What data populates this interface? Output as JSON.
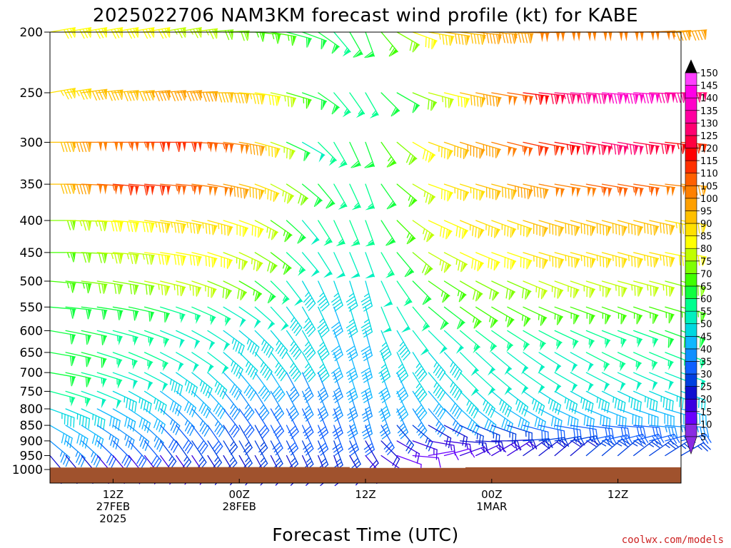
{
  "chart_data": {
    "type": "wind-profile",
    "title": "2025022706 NAM3KM forecast wind profile (kt) for KABE",
    "xlabel": "Forecast Time (UTC)",
    "ylabel": "",
    "y_scale": "log",
    "ylim": [
      1000,
      200
    ],
    "y_ticks": [
      200,
      250,
      300,
      350,
      400,
      450,
      500,
      550,
      600,
      650,
      700,
      750,
      800,
      850,
      900,
      950,
      1000
    ],
    "x_range_hours": [
      0,
      60
    ],
    "x_ticks": [
      {
        "hour": 6,
        "lines": [
          "12Z",
          "27FEB",
          "2025"
        ]
      },
      {
        "hour": 18,
        "lines": [
          "00Z",
          "28FEB"
        ]
      },
      {
        "hour": 30,
        "lines": [
          "12Z"
        ]
      },
      {
        "hour": 42,
        "lines": [
          "00Z",
          "1MAR"
        ]
      },
      {
        "hour": 54,
        "lines": [
          "12Z"
        ]
      }
    ],
    "ground": {
      "color": "#a0522d",
      "surface_pressure": [
        [
          0,
          993
        ],
        [
          4,
          993
        ],
        [
          9.5,
          993
        ],
        [
          9.5,
          991
        ],
        [
          28.5,
          991
        ],
        [
          28.5,
          994
        ],
        [
          39.5,
          994
        ],
        [
          39.5,
          992
        ],
        [
          60,
          992
        ]
      ]
    },
    "colorbar": {
      "levels": [
        5,
        10,
        15,
        20,
        25,
        30,
        35,
        40,
        45,
        50,
        55,
        60,
        65,
        70,
        75,
        80,
        85,
        90,
        95,
        100,
        105,
        110,
        115,
        120,
        125,
        130,
        135,
        140,
        145,
        150
      ],
      "colors": [
        "#8a2be2",
        "#6a00ff",
        "#3a00e0",
        "#1010d0",
        "#0040e0",
        "#1060ff",
        "#1090ff",
        "#10b8ff",
        "#00d8e0",
        "#00f0c0",
        "#00ff90",
        "#10ff40",
        "#40ff00",
        "#80ff00",
        "#c0ff00",
        "#ffff00",
        "#ffe000",
        "#ffc000",
        "#ffa000",
        "#ff8000",
        "#ff6000",
        "#ff3000",
        "#ff0000",
        "#ff0040",
        "#ff0070",
        "#ff00a0",
        "#ff00c8",
        "#ff00e8",
        "#ff40ff"
      ],
      "over_color": "#000000",
      "under_color": "#8a2be2"
    },
    "profile": {
      "levels": [
        200,
        250,
        300,
        350,
        400,
        450,
        500,
        550,
        600,
        650,
        700,
        750,
        800,
        850,
        900,
        950
      ],
      "hour_step": 1.5,
      "anchor_hours": [
        0,
        6,
        12,
        18,
        24,
        27,
        30,
        33,
        36,
        42,
        48,
        54,
        60
      ],
      "speed_kt": {
        "200": [
          80,
          82,
          75,
          65,
          60,
          55,
          60,
          70,
          85,
          95,
          100,
          100,
          95
        ],
        "250": [
          85,
          90,
          95,
          85,
          60,
          55,
          55,
          60,
          75,
          100,
          125,
          135,
          125
        ],
        "300": [
          90,
          105,
          110,
          95,
          50,
          55,
          60,
          70,
          85,
          100,
          115,
          125,
          110
        ],
        "350": [
          90,
          110,
          105,
          90,
          60,
          55,
          55,
          65,
          80,
          90,
          100,
          105,
          95
        ],
        "400": [
          70,
          80,
          85,
          80,
          50,
          55,
          55,
          65,
          80,
          85,
          90,
          90,
          85
        ],
        "450": [
          65,
          75,
          80,
          75,
          50,
          50,
          50,
          60,
          75,
          80,
          85,
          85,
          80
        ],
        "500": [
          65,
          70,
          75,
          65,
          45,
          45,
          45,
          55,
          65,
          70,
          75,
          75,
          70
        ],
        "550": [
          60,
          60,
          55,
          50,
          45,
          40,
          45,
          50,
          60,
          65,
          65,
          65,
          65
        ],
        "600": [
          60,
          55,
          50,
          45,
          45,
          40,
          40,
          45,
          50,
          55,
          55,
          55,
          60
        ],
        "650": [
          60,
          55,
          50,
          45,
          45,
          40,
          40,
          45,
          45,
          50,
          50,
          55,
          55
        ],
        "700": [
          60,
          50,
          45,
          40,
          35,
          35,
          40,
          40,
          45,
          50,
          50,
          50,
          50
        ],
        "750": [
          55,
          45,
          40,
          35,
          35,
          35,
          35,
          40,
          40,
          45,
          45,
          45,
          45
        ],
        "800": [
          45,
          40,
          35,
          30,
          30,
          30,
          35,
          35,
          35,
          40,
          40,
          40,
          40
        ],
        "850": [
          40,
          35,
          30,
          25,
          30,
          30,
          30,
          25,
          20,
          25,
          30,
          30,
          35
        ],
        "900": [
          35,
          30,
          25,
          25,
          25,
          25,
          20,
          15,
          15,
          20,
          25,
          30,
          30
        ],
        "950": [
          20,
          15,
          15,
          20,
          20,
          20,
          15,
          10,
          10,
          15,
          20,
          25,
          25
        ]
      },
      "direction_deg": {
        "200": [
          260,
          260,
          260,
          270,
          290,
          320,
          340,
          300,
          280,
          275,
          270,
          270,
          265
        ],
        "250": [
          260,
          265,
          265,
          275,
          290,
          320,
          330,
          300,
          285,
          280,
          275,
          275,
          270
        ],
        "300": [
          270,
          270,
          270,
          280,
          300,
          330,
          340,
          310,
          290,
          285,
          280,
          280,
          275
        ],
        "350": [
          270,
          275,
          275,
          285,
          310,
          330,
          340,
          310,
          290,
          285,
          280,
          280,
          275
        ],
        "400": [
          270,
          275,
          280,
          290,
          320,
          335,
          340,
          315,
          295,
          290,
          285,
          285,
          280
        ],
        "450": [
          270,
          275,
          280,
          295,
          320,
          335,
          340,
          320,
          300,
          290,
          285,
          285,
          280
        ],
        "500": [
          275,
          280,
          285,
          300,
          330,
          340,
          345,
          325,
          305,
          295,
          290,
          285,
          285
        ],
        "550": [
          275,
          280,
          290,
          305,
          330,
          340,
          345,
          330,
          310,
          300,
          290,
          290,
          285
        ],
        "600": [
          280,
          285,
          295,
          310,
          330,
          340,
          345,
          330,
          315,
          305,
          295,
          290,
          290
        ],
        "650": [
          280,
          290,
          300,
          315,
          330,
          340,
          345,
          335,
          320,
          310,
          300,
          295,
          290
        ],
        "700": [
          280,
          290,
          305,
          320,
          335,
          340,
          345,
          335,
          320,
          310,
          300,
          295,
          290
        ],
        "750": [
          285,
          295,
          310,
          325,
          335,
          340,
          345,
          335,
          320,
          310,
          300,
          295,
          290
        ],
        "800": [
          290,
          300,
          315,
          325,
          335,
          340,
          345,
          335,
          320,
          305,
          295,
          290,
          285
        ],
        "850": [
          300,
          305,
          320,
          330,
          335,
          340,
          340,
          320,
          300,
          290,
          280,
          275,
          275
        ],
        "900": [
          310,
          315,
          325,
          330,
          335,
          340,
          330,
          300,
          280,
          270,
          260,
          255,
          255
        ],
        "950": [
          320,
          320,
          325,
          330,
          335,
          340,
          320,
          290,
          260,
          240,
          230,
          230,
          240
        ]
      }
    }
  },
  "credit": "coolwx.com/models"
}
